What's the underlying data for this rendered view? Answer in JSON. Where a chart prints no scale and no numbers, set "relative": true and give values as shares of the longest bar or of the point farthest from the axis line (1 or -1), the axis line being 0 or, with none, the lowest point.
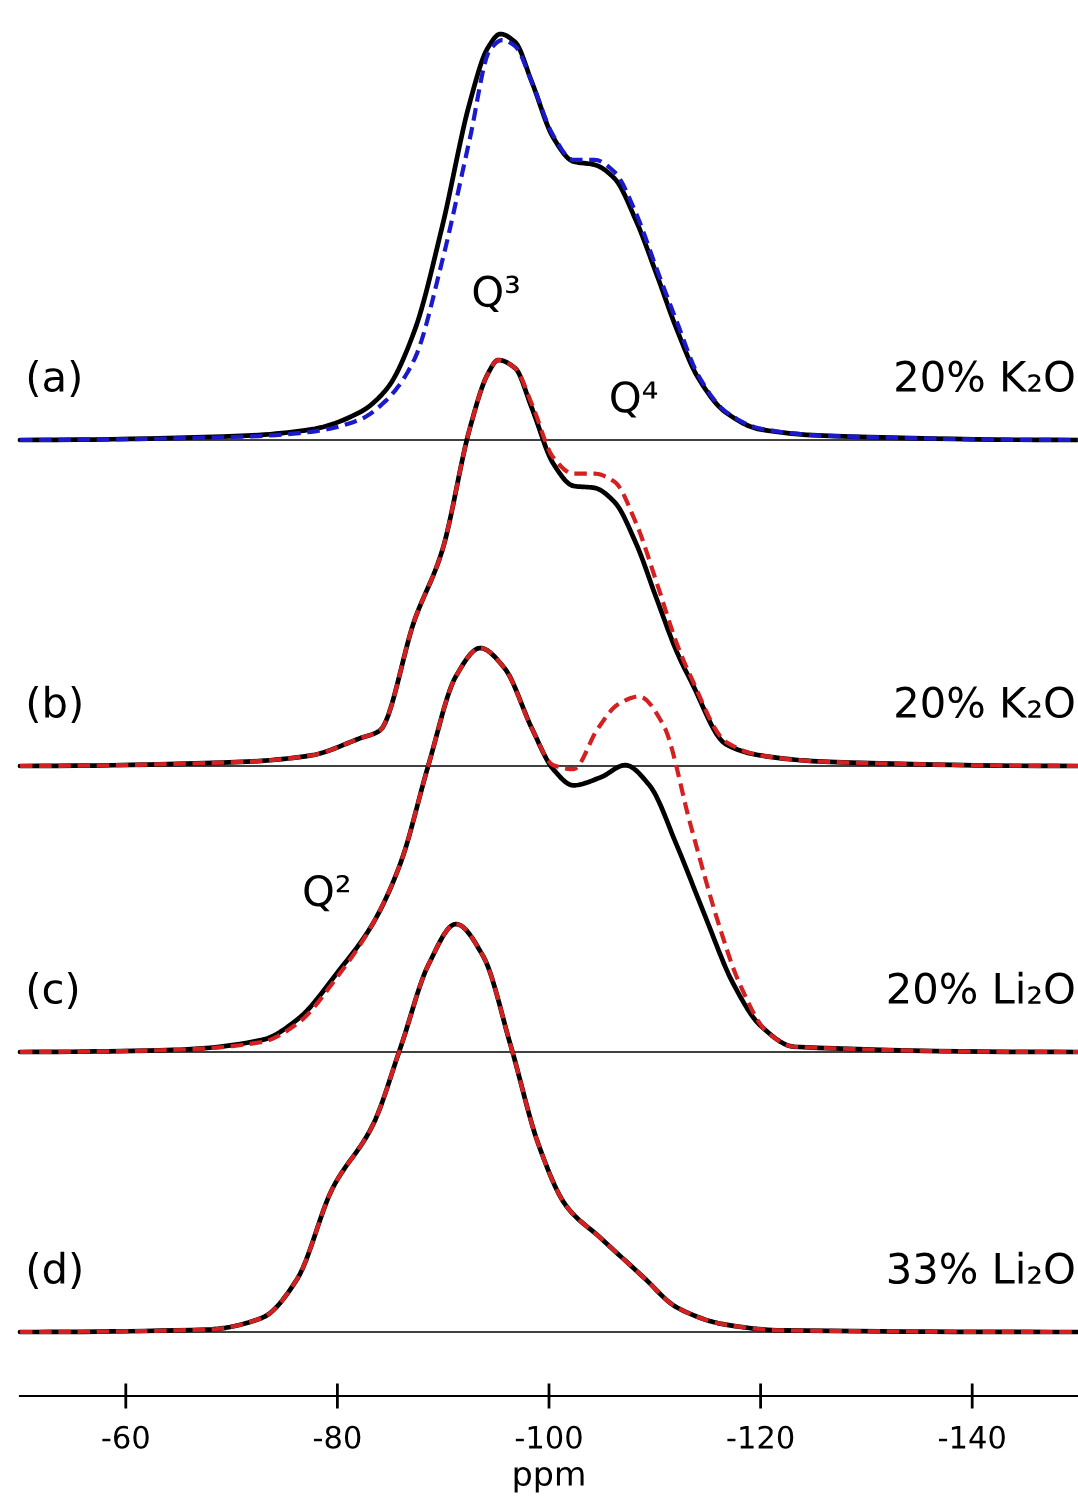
{
  "chart_data": [
    {
      "type": "line",
      "relative": true,
      "xlim": [
        -50,
        -150
      ],
      "tick_labels": false,
      "xticks": [
        -60,
        -80,
        -100,
        -120,
        -140
      ],
      "annotations": [
        "(a)",
        "20% K₂O"
      ],
      "series": [
        {
          "color": "#1a1acc",
          "line_style": "dashed",
          "x": [
            -50,
            -70.9,
            -77.5,
            -82.1,
            -84.7,
            -87.3,
            -89.9,
            -92.5,
            -94.4,
            -95.6,
            -96.8,
            -98.4,
            -100.4,
            -102.3,
            -104.3,
            -106.2,
            -108.2,
            -110.2,
            -112.1,
            -114.1,
            -116.7,
            -120,
            -126.5,
            -150
          ],
          "values": [
            0,
            0.008,
            0.02,
            0.05,
            0.1,
            0.2,
            0.44,
            0.74,
            0.96,
            0.985,
            0.97,
            0.88,
            0.75,
            0.69,
            0.69,
            0.66,
            0.56,
            0.42,
            0.29,
            0.16,
            0.07,
            0.028,
            0.01,
            0
          ]
        },
        {
          "color": "#000000",
          "line_style": "solid",
          "x": [
            -50,
            -70.9,
            -77.5,
            -82.1,
            -84.7,
            -87.3,
            -89.9,
            -92.5,
            -94.2,
            -95.4,
            -96.8,
            -98.4,
            -100.4,
            -102.3,
            -104.3,
            -106.2,
            -108.2,
            -110.2,
            -112.1,
            -114.1,
            -116.7,
            -120,
            -126.5,
            -150
          ],
          "values": [
            0,
            0.01,
            0.026,
            0.068,
            0.127,
            0.27,
            0.525,
            0.83,
            0.965,
            1,
            0.98,
            0.88,
            0.745,
            0.686,
            0.678,
            0.644,
            0.542,
            0.406,
            0.271,
            0.153,
            0.068,
            0.026,
            0.01,
            0
          ]
        }
      ]
    },
    {
      "type": "line",
      "relative": true,
      "xlim": [
        -50,
        -150
      ],
      "tick_labels": false,
      "xticks": [
        -60,
        -80,
        -100,
        -120,
        -140
      ],
      "annotations": [
        "(b)",
        "20% K₂O",
        "Q³",
        "Q⁴"
      ],
      "series": [
        {
          "color": "#d42020",
          "line_style": "dashed",
          "x": [
            -50,
            -70.9,
            -77.5,
            -82.1,
            -84.0,
            -87.3,
            -89.9,
            -92.5,
            -94.2,
            -95.2,
            -96.8,
            -98.4,
            -100.4,
            -102.3,
            -104.3,
            -106.2,
            -108.2,
            -110.2,
            -112.1,
            -113.4,
            -116.7,
            -120,
            -126.5,
            -150
          ],
          "values": [
            0,
            0.01,
            0.026,
            0.068,
            0.087,
            0.36,
            0.53,
            0.83,
            0.965,
            1,
            0.98,
            0.89,
            0.76,
            0.72,
            0.72,
            0.7,
            0.6,
            0.45,
            0.3,
            0.22,
            0.06,
            0.026,
            0.01,
            0
          ]
        },
        {
          "color": "#000000",
          "line_style": "solid",
          "x": [
            -50,
            -70.9,
            -77.5,
            -82.1,
            -84.0,
            -87.3,
            -89.9,
            -92.5,
            -94.2,
            -95.2,
            -96.8,
            -98.4,
            -100.4,
            -102.3,
            -104.3,
            -106.2,
            -108.2,
            -110.2,
            -112.1,
            -113.4,
            -116.7,
            -120,
            -126.5,
            -150
          ],
          "values": [
            0,
            0.01,
            0.026,
            0.068,
            0.087,
            0.36,
            0.53,
            0.83,
            0.965,
            1,
            0.98,
            0.88,
            0.745,
            0.69,
            0.685,
            0.65,
            0.55,
            0.41,
            0.28,
            0.21,
            0.054,
            0.026,
            0.01,
            0
          ]
        }
      ]
    },
    {
      "type": "line",
      "relative": true,
      "xlim": [
        -50,
        -150
      ],
      "tick_labels": false,
      "xticks": [
        -60,
        -80,
        -100,
        -120,
        -140
      ],
      "annotations": [
        "(c)",
        "20% Li₂O",
        "Q²"
      ],
      "series": [
        {
          "color": "#d42020",
          "line_style": "dashed",
          "x": [
            -50,
            -64.4,
            -72.9,
            -76.2,
            -80.1,
            -83.4,
            -86.0,
            -88.6,
            -91.2,
            -93.5,
            -95.8,
            -98.4,
            -100.4,
            -102.3,
            -104.6,
            -106.5,
            -108.5,
            -110.8,
            -113.4,
            -116.0,
            -118.0,
            -120.6,
            -123.2,
            -150
          ],
          "values": [
            0,
            0.005,
            0.025,
            0.07,
            0.19,
            0.32,
            0.47,
            0.71,
            0.93,
            1,
            0.95,
            0.8,
            0.71,
            0.7,
            0.8,
            0.86,
            0.88,
            0.81,
            0.56,
            0.32,
            0.17,
            0.05,
            0.013,
            0
          ]
        },
        {
          "color": "#000000",
          "line_style": "solid",
          "x": [
            -50,
            -64.4,
            -72.9,
            -76.2,
            -80.1,
            -83.4,
            -86.0,
            -88.6,
            -91.2,
            -93.5,
            -95.8,
            -98.4,
            -100.4,
            -102.3,
            -104.9,
            -107.2,
            -109.5,
            -112.1,
            -114.7,
            -117.4,
            -120,
            -123.2,
            -150
          ],
          "values": [
            0,
            0.005,
            0.03,
            0.08,
            0.2,
            0.32,
            0.47,
            0.71,
            0.93,
            1,
            0.95,
            0.8,
            0.7,
            0.66,
            0.68,
            0.71,
            0.66,
            0.51,
            0.34,
            0.17,
            0.065,
            0.013,
            0
          ]
        }
      ]
    },
    {
      "type": "line",
      "relative": true,
      "xlim": [
        -50,
        -150
      ],
      "tick_labels": "x",
      "xlabel": "ppm",
      "xticks": [
        -60,
        -80,
        -100,
        -120,
        -140
      ],
      "annotations": [
        "(d)",
        "33% Li₂O"
      ],
      "series": [
        {
          "color": "#d42020",
          "line_style": "dashed",
          "x": [
            -50,
            -67.7,
            -72.9,
            -76.2,
            -79.5,
            -83.4,
            -86.0,
            -88.6,
            -91.2,
            -93.8,
            -96.4,
            -99.0,
            -101.6,
            -104.9,
            -108.9,
            -112.1,
            -116.7,
            -122,
            -150
          ],
          "values": [
            0,
            0.006,
            0.035,
            0.13,
            0.35,
            0.51,
            0.7,
            0.9,
            1,
            0.92,
            0.7,
            0.46,
            0.31,
            0.23,
            0.135,
            0.06,
            0.018,
            0.004,
            0
          ]
        },
        {
          "color": "#000000",
          "line_style": "solid",
          "x": [
            -50,
            -67.7,
            -72.9,
            -76.2,
            -79.5,
            -83.4,
            -86.0,
            -88.6,
            -91.2,
            -93.8,
            -96.4,
            -99.0,
            -101.6,
            -104.9,
            -108.9,
            -112.1,
            -116.7,
            -122,
            -150
          ],
          "values": [
            0,
            0.006,
            0.035,
            0.13,
            0.35,
            0.51,
            0.7,
            0.9,
            1,
            0.92,
            0.7,
            0.46,
            0.31,
            0.23,
            0.135,
            0.06,
            0.018,
            0.004,
            0
          ]
        }
      ]
    }
  ]
}
